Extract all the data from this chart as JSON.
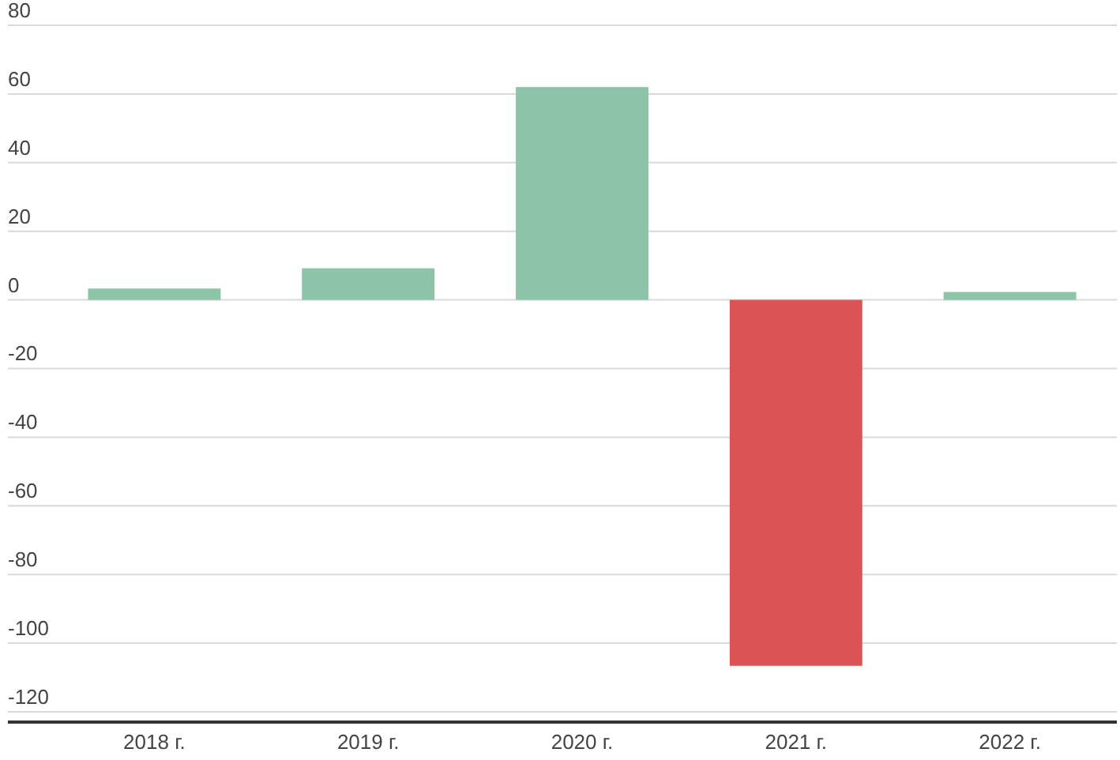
{
  "chart_data": {
    "type": "bar",
    "categories": [
      "2018 г.",
      "2019 г.",
      "2020 г.",
      "2021 г.",
      "2022 г."
    ],
    "values": [
      3.3,
      9.2,
      62,
      -106.6,
      2.3
    ],
    "colors": [
      "#8dc3a7",
      "#8dc3a7",
      "#8dc3a7",
      "#dc5355",
      "#8dc3a7"
    ],
    "ylim": [
      -123,
      80
    ],
    "yticks": [
      -120,
      -100,
      -80,
      -60,
      -40,
      -20,
      0,
      20,
      40,
      60,
      80
    ],
    "grid": "y"
  }
}
